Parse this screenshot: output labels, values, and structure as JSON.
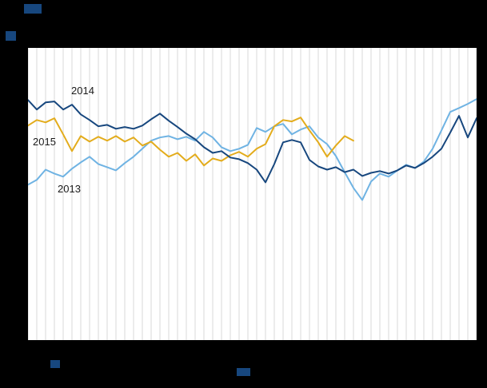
{
  "chart_data": {
    "type": "line",
    "title": "",
    "xlabel": "",
    "ylabel": "",
    "x_unit": "week",
    "x": [
      1,
      2,
      3,
      4,
      5,
      6,
      7,
      8,
      9,
      10,
      11,
      12,
      13,
      14,
      15,
      16,
      17,
      18,
      19,
      20,
      21,
      22,
      23,
      24,
      25,
      26,
      27,
      28,
      29,
      30,
      31,
      32,
      33,
      34,
      35,
      36,
      37,
      38,
      39,
      40,
      41,
      42,
      43,
      44,
      45,
      46,
      47,
      48,
      49,
      50,
      51,
      52
    ],
    "ylim": [
      0,
      120
    ],
    "grid": "vertical",
    "legend_position": "inline-labels",
    "series": [
      {
        "name": "2013",
        "color": "#6fb3e3",
        "values": [
          63.8,
          65.8,
          70.0,
          68.4,
          67.1,
          70.4,
          73.0,
          75.3,
          72.3,
          71.0,
          69.7,
          72.7,
          75.3,
          78.6,
          81.9,
          83.2,
          83.8,
          82.5,
          83.5,
          81.9,
          85.5,
          83.2,
          79.2,
          77.6,
          78.6,
          80.2,
          87.1,
          85.5,
          87.8,
          88.8,
          84.5,
          86.5,
          87.8,
          83.2,
          80.5,
          75.6,
          69.0,
          62.5,
          57.5,
          65.1,
          68.4,
          67.1,
          69.7,
          72.0,
          70.7,
          73.3,
          78.6,
          86.1,
          93.7,
          95.3,
          97.0,
          99.0
        ]
      },
      {
        "name": "2015",
        "color": "#e3ac1c",
        "values": [
          88.1,
          90.4,
          89.4,
          91.1,
          84.5,
          77.6,
          83.8,
          81.5,
          83.5,
          81.9,
          83.8,
          81.5,
          83.2,
          79.9,
          81.5,
          78.2,
          75.3,
          76.9,
          73.6,
          76.3,
          71.7,
          74.6,
          73.6,
          75.9,
          77.3,
          75.3,
          78.6,
          80.5,
          87.8,
          90.4,
          89.8,
          91.4,
          86.1,
          81.2,
          75.3,
          79.9,
          83.8,
          81.9
        ]
      },
      {
        "name": "2014",
        "color": "#17477e",
        "values": [
          98.6,
          94.7,
          97.6,
          98.0,
          94.7,
          96.7,
          92.7,
          90.4,
          87.8,
          88.4,
          86.8,
          87.5,
          86.8,
          88.1,
          90.7,
          93.0,
          90.1,
          87.5,
          84.8,
          82.5,
          79.2,
          76.9,
          77.6,
          75.0,
          74.3,
          72.7,
          70.0,
          64.8,
          72.3,
          81.2,
          82.2,
          81.2,
          74.0,
          71.3,
          70.0,
          71.0,
          69.0,
          70.0,
          67.4,
          68.7,
          69.4,
          68.4,
          69.7,
          71.7,
          70.7,
          72.7,
          75.3,
          78.6,
          85.2,
          92.1,
          83.2,
          91.1
        ]
      }
    ],
    "series_labels": {
      "label_2014": "2014",
      "label_2015": "2015",
      "label_2013": "2013"
    }
  },
  "colors": {
    "background": "#000000",
    "plot_background": "#ffffff",
    "gridline": "#d9d9d9",
    "redacted_block": "#17477e",
    "label_text": "#1a1a1a"
  }
}
